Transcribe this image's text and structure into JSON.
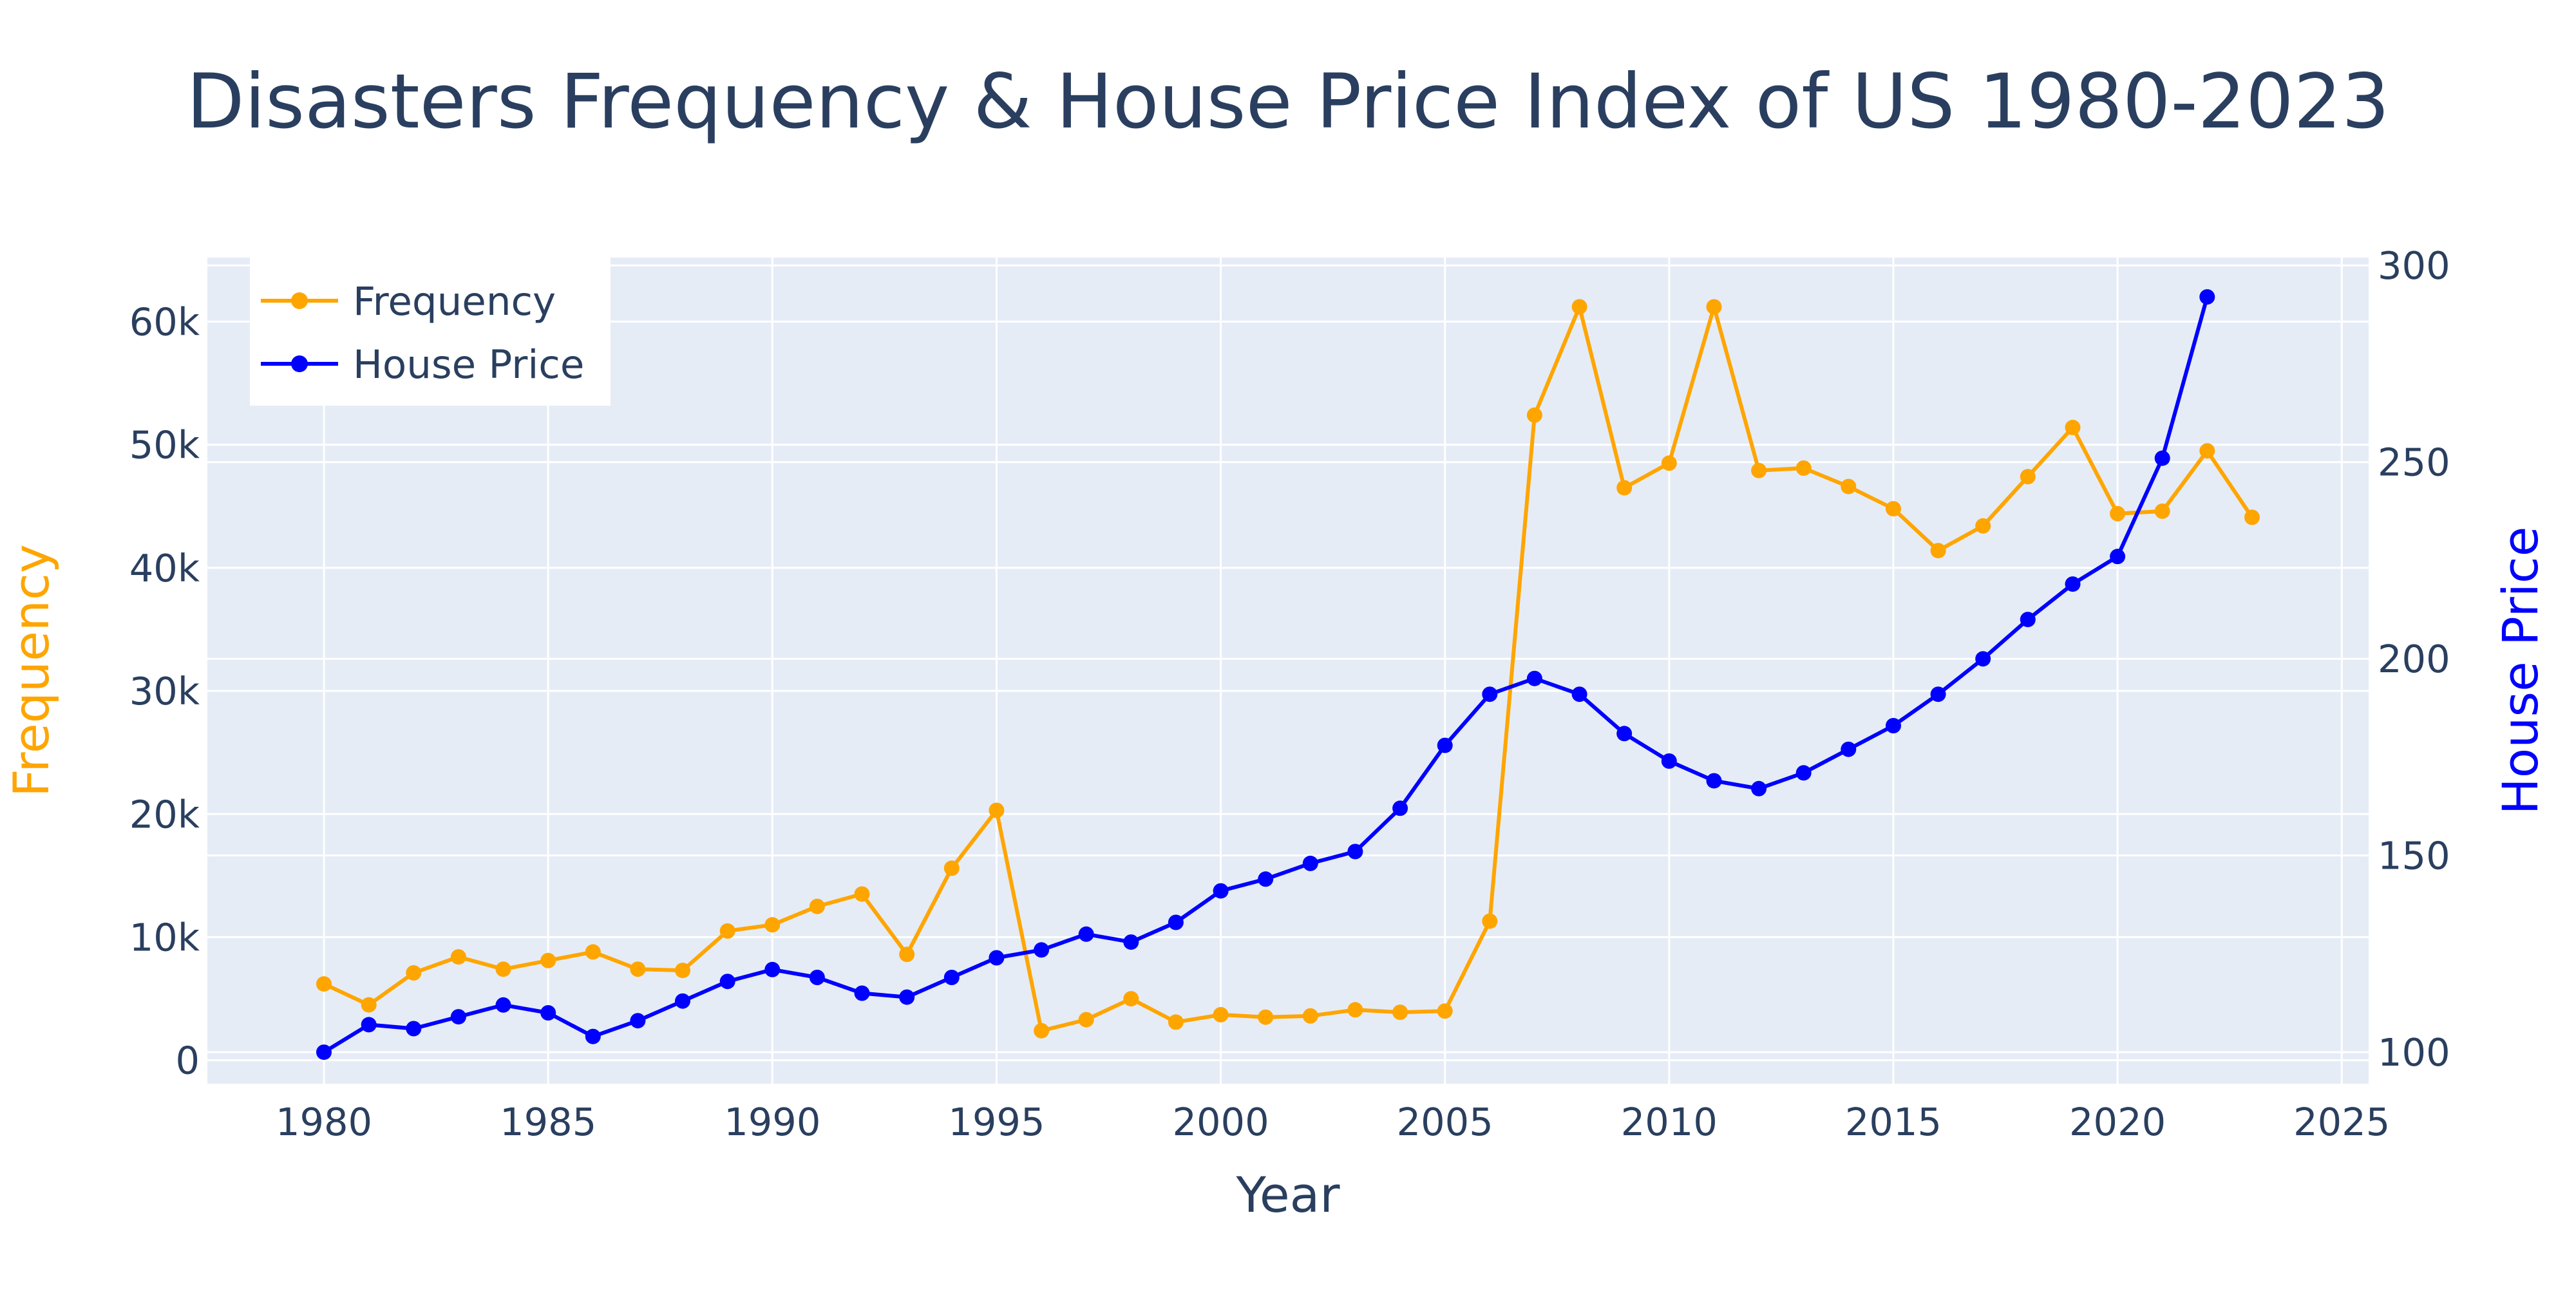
{
  "colors": {
    "plot_bg": "#e5ecf6",
    "grid": "#ffffff",
    "text": "#2a3f5f",
    "frequency": "#ffa500",
    "house_price": "#0000ff"
  },
  "chart_data": {
    "type": "line",
    "title": "Disasters Frequency & House Price Index of US 1980-2023",
    "xlabel": "Year",
    "ylabel": "Frequency",
    "y2label": "House Price",
    "xlim": [
      1977.4,
      2025.6
    ],
    "ylim": [
      -1900,
      65200
    ],
    "y2lim": [
      92,
      302
    ],
    "x_ticks": [
      1980,
      1985,
      1990,
      1995,
      2000,
      2005,
      2010,
      2015,
      2020,
      2025
    ],
    "y_ticks": [
      0,
      10000,
      20000,
      30000,
      40000,
      50000,
      60000
    ],
    "y_tick_labels": [
      "0",
      "10k",
      "20k",
      "30k",
      "40k",
      "50k",
      "60k"
    ],
    "y2_ticks": [
      100,
      150,
      200,
      250,
      300
    ],
    "y2_tick_labels": [
      "100",
      "150",
      "200",
      "250",
      "300"
    ],
    "grid": true,
    "legend_position": "top-left",
    "series": [
      {
        "name": "Frequency",
        "axis": "y",
        "color": "#ffa500",
        "x": [
          1980,
          1981,
          1982,
          1983,
          1984,
          1985,
          1986,
          1987,
          1988,
          1989,
          1990,
          1991,
          1992,
          1993,
          1994,
          1995,
          1996,
          1997,
          1998,
          1999,
          2000,
          2001,
          2002,
          2003,
          2004,
          2005,
          2006,
          2007,
          2008,
          2009,
          2010,
          2011,
          2012,
          2013,
          2014,
          2015,
          2016,
          2017,
          2018,
          2019,
          2020,
          2021,
          2022,
          2023
        ],
        "values": [
          6200,
          4500,
          7100,
          8400,
          7400,
          8100,
          8800,
          7400,
          7300,
          10500,
          11000,
          12500,
          13500,
          8600,
          15600,
          20300,
          2400,
          3300,
          5000,
          3100,
          3700,
          3500,
          3600,
          4100,
          3900,
          4000,
          11300,
          52400,
          61200,
          46500,
          48500,
          61200,
          47900,
          48100,
          46600,
          44800,
          41400,
          43400,
          47400,
          51400,
          44400,
          44600,
          49500,
          44100
        ]
      },
      {
        "name": "House Price",
        "axis": "y2",
        "color": "#0000ff",
        "x": [
          1980,
          1981,
          1982,
          1983,
          1984,
          1985,
          1986,
          1987,
          1988,
          1989,
          1990,
          1991,
          1992,
          1993,
          1994,
          1995,
          1996,
          1997,
          1998,
          1999,
          2000,
          2001,
          2002,
          2003,
          2004,
          2005,
          2006,
          2007,
          2008,
          2009,
          2010,
          2011,
          2012,
          2013,
          2014,
          2015,
          2016,
          2017,
          2018,
          2019,
          2020,
          2021,
          2022
        ],
        "values": [
          100,
          107,
          106,
          109,
          112,
          110,
          104,
          108,
          113,
          118,
          121,
          119,
          115,
          114,
          119,
          124,
          126,
          130,
          128,
          133,
          141,
          144,
          148,
          151,
          162,
          178,
          191,
          195,
          191,
          181,
          174,
          169,
          167,
          171,
          177,
          183,
          191,
          200,
          210,
          219,
          226,
          251,
          292
        ]
      }
    ]
  }
}
